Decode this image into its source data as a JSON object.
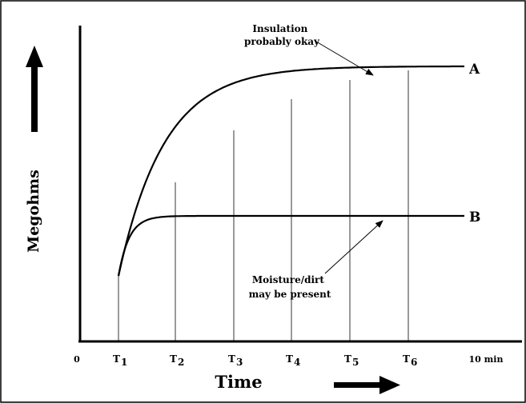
{
  "chart_data": {
    "type": "line",
    "title": "",
    "xlabel": "Time",
    "ylabel": "Megohms",
    "x_ticks": [
      {
        "main": "0",
        "sub": ""
      },
      {
        "main": "T",
        "sub": "1"
      },
      {
        "main": "T",
        "sub": "2"
      },
      {
        "main": "T",
        "sub": "3"
      },
      {
        "main": "T",
        "sub": "4"
      },
      {
        "main": "T",
        "sub": "5"
      },
      {
        "main": "T",
        "sub": "6"
      },
      {
        "main": "10 min",
        "sub": ""
      }
    ],
    "series": [
      {
        "name": "A",
        "label": "A",
        "note": "Insulation probably okay",
        "note_lines": [
          "Insulation",
          "probably okay"
        ],
        "curvature": 0.0175
      },
      {
        "name": "B",
        "label": "B",
        "note": "Moisture/dirt may be present",
        "note_lines": [
          "Moisture/dirt",
          "may be present"
        ],
        "curvature": 0.075
      }
    ],
    "colors": {
      "ink": "#000000",
      "background": "#ffffff"
    }
  }
}
